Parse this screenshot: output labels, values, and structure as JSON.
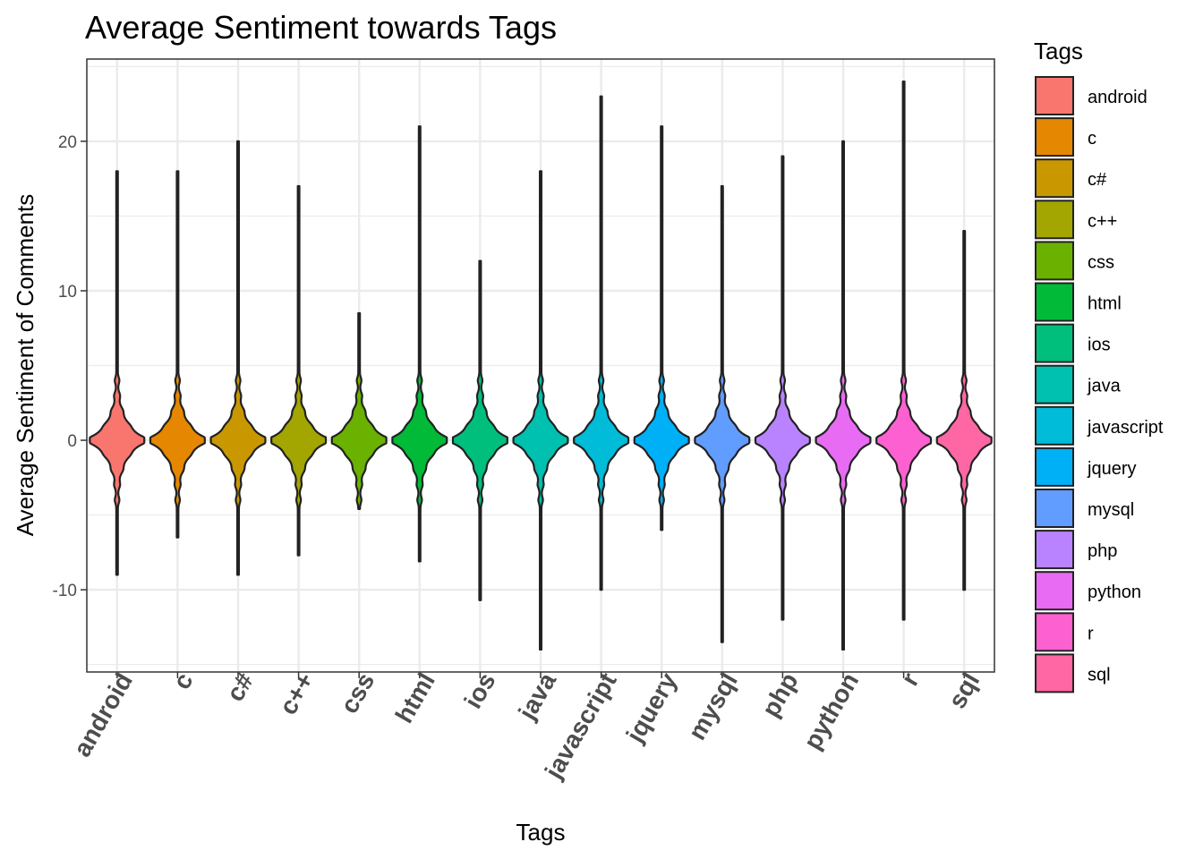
{
  "chart_data": {
    "type": "violin",
    "title": "Average Sentiment towards Tags",
    "xlabel": "Tags",
    "ylabel": "Average Sentiment of Comments",
    "legend_title": "Tags",
    "legend_position": "right",
    "grid": true,
    "ylim": [
      -15.5,
      25.5
    ],
    "yticks": [
      -10,
      0,
      10,
      20
    ],
    "ytick_labels": [
      "-10",
      "0",
      "10",
      "20"
    ],
    "categories": [
      "android",
      "c",
      "c#",
      "c++",
      "css",
      "html",
      "ios",
      "java",
      "javascript",
      "jquery",
      "mysql",
      "php",
      "python",
      "r",
      "sql"
    ],
    "colors": [
      "#F8766D",
      "#E58700",
      "#C99800",
      "#A3A500",
      "#6BB100",
      "#00BA38",
      "#00BF7D",
      "#00C0AF",
      "#00BCD8",
      "#00B0F6",
      "#619CFF",
      "#B983FF",
      "#E76BF3",
      "#FD61D1",
      "#FF67A4"
    ],
    "series": [
      {
        "name": "android",
        "min": -9,
        "max": 18
      },
      {
        "name": "c",
        "min": -6.5,
        "max": 18
      },
      {
        "name": "c#",
        "min": -9,
        "max": 20
      },
      {
        "name": "c++",
        "min": -7.7,
        "max": 17
      },
      {
        "name": "css",
        "min": -4.6,
        "max": 8.5
      },
      {
        "name": "html",
        "min": -8.1,
        "max": 21
      },
      {
        "name": "ios",
        "min": -10.7,
        "max": 12
      },
      {
        "name": "java",
        "min": -14,
        "max": 18
      },
      {
        "name": "javascript",
        "min": -10,
        "max": 23
      },
      {
        "name": "jquery",
        "min": -6,
        "max": 21
      },
      {
        "name": "mysql",
        "min": -13.5,
        "max": 17
      },
      {
        "name": "php",
        "min": -12,
        "max": 19
      },
      {
        "name": "python",
        "min": -14,
        "max": 20
      },
      {
        "name": "r",
        "min": -12,
        "max": 24
      },
      {
        "name": "sql",
        "min": -10,
        "max": 14
      }
    ]
  }
}
